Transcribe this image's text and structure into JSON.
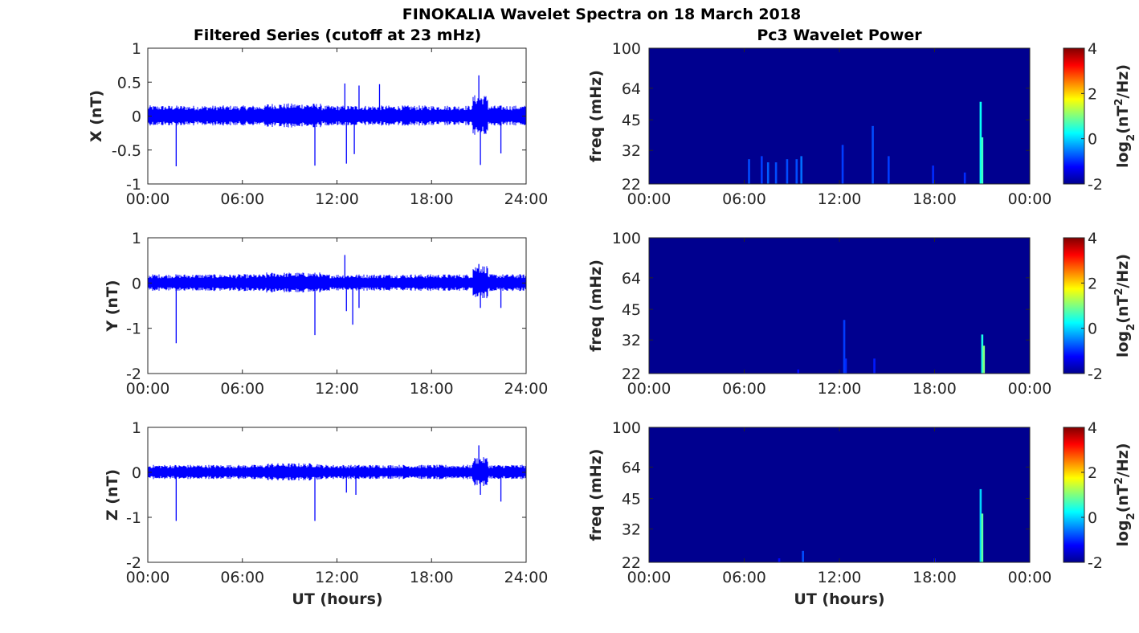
{
  "figure": {
    "title": "FINOKALIA Wavelet Spectra on 18 March 2018",
    "left_title": "Filtered Series (cutoff at 23 mHz)",
    "right_title": "Pc3 Wavelet Power",
    "xlabel": "UT (hours)",
    "colors": {
      "trace": "#0000ff",
      "background_power": "#00008f",
      "axes": "#262626"
    }
  },
  "chart_data": [
    {
      "type": "line",
      "panel": "X-series",
      "ylabel": "X (nT)",
      "ylim": [
        -1,
        1
      ],
      "yticks": [
        1,
        0.5,
        0,
        -0.5,
        -1
      ],
      "ytick_labels": [
        "1",
        "0.5",
        "0",
        "-0.5",
        "-1"
      ],
      "xlim": [
        0,
        24
      ],
      "xticks": [
        0,
        6,
        12,
        18,
        24
      ],
      "xtick_labels": [
        "00:00",
        "06:00",
        "12:00",
        "18:00",
        "24:00"
      ],
      "baseline_amplitude": 0.12,
      "spikes": [
        {
          "x": 1.8,
          "y": -0.74
        },
        {
          "x": 10.6,
          "y": -0.73
        },
        {
          "x": 12.5,
          "y": 0.48
        },
        {
          "x": 12.6,
          "y": -0.7
        },
        {
          "x": 13.1,
          "y": -0.56
        },
        {
          "x": 13.4,
          "y": 0.45
        },
        {
          "x": 14.7,
          "y": 0.47
        },
        {
          "x": 21.0,
          "y": 0.6
        },
        {
          "x": 21.1,
          "y": -0.72
        },
        {
          "x": 22.4,
          "y": -0.55
        }
      ]
    },
    {
      "type": "line",
      "panel": "Y-series",
      "ylabel": "Y (nT)",
      "ylim": [
        -2,
        1
      ],
      "yticks": [
        1,
        0,
        -1,
        -2
      ],
      "ytick_labels": [
        "1",
        "0",
        "-1",
        "-2"
      ],
      "xlim": [
        0,
        24
      ],
      "xticks": [
        0,
        6,
        12,
        18,
        24
      ],
      "xtick_labels": [
        "00:00",
        "06:00",
        "12:00",
        "18:00",
        "24:00"
      ],
      "baseline_amplitude": 0.15,
      "spikes": [
        {
          "x": 1.8,
          "y": -1.33
        },
        {
          "x": 10.6,
          "y": -1.15
        },
        {
          "x": 12.5,
          "y": 0.62
        },
        {
          "x": 12.6,
          "y": -0.62
        },
        {
          "x": 13.0,
          "y": -0.92
        },
        {
          "x": 13.4,
          "y": -0.55
        },
        {
          "x": 21.0,
          "y": 0.42
        },
        {
          "x": 21.1,
          "y": -0.55
        },
        {
          "x": 22.4,
          "y": -0.55
        }
      ]
    },
    {
      "type": "line",
      "panel": "Z-series",
      "ylabel": "Z (nT)",
      "ylim": [
        -2,
        1
      ],
      "yticks": [
        1,
        0,
        -1,
        -2
      ],
      "ytick_labels": [
        "1",
        "0",
        "-1",
        "-2"
      ],
      "xlim": [
        0,
        24
      ],
      "xticks": [
        0,
        6,
        12,
        18,
        24
      ],
      "xtick_labels": [
        "00:00",
        "06:00",
        "12:00",
        "18:00",
        "24:00"
      ],
      "baseline_amplitude": 0.13,
      "spikes": [
        {
          "x": 1.8,
          "y": -1.08
        },
        {
          "x": 10.6,
          "y": -1.08
        },
        {
          "x": 12.6,
          "y": -0.45
        },
        {
          "x": 13.2,
          "y": -0.5
        },
        {
          "x": 21.0,
          "y": 0.6
        },
        {
          "x": 21.1,
          "y": -0.5
        },
        {
          "x": 22.4,
          "y": -0.65
        }
      ]
    },
    {
      "type": "heatmap",
      "panel": "X-power",
      "ylabel": "freq (mHz)",
      "y_scale": "log",
      "ylim": [
        22,
        100
      ],
      "yticks": [
        22,
        32,
        45,
        64,
        100
      ],
      "ytick_labels": [
        "22",
        "32",
        "45",
        "64",
        "100"
      ],
      "xlim": [
        0,
        24
      ],
      "xticks": [
        0,
        6,
        12,
        18,
        24
      ],
      "xtick_labels": [
        "00:00",
        "06:00",
        "12:00",
        "18:00",
        "00:00"
      ],
      "colorbar": {
        "label": "log2(nT²/Hz)",
        "range": [
          -2,
          4
        ],
        "ticks": [
          4,
          2,
          0,
          -2
        ],
        "tick_labels": [
          "4",
          "2",
          "0",
          "-2"
        ]
      },
      "events": [
        {
          "t": 6.3,
          "f_top": 29,
          "level": -0.8
        },
        {
          "t": 7.1,
          "f_top": 30,
          "level": -0.9
        },
        {
          "t": 7.5,
          "f_top": 28,
          "level": -0.7
        },
        {
          "t": 8.0,
          "f_top": 28,
          "level": -0.8
        },
        {
          "t": 8.7,
          "f_top": 29,
          "level": -0.8
        },
        {
          "t": 9.3,
          "f_top": 29,
          "level": -0.8
        },
        {
          "t": 9.6,
          "f_top": 30,
          "level": -0.6
        },
        {
          "t": 12.2,
          "f_top": 34,
          "level": -0.9
        },
        {
          "t": 14.1,
          "f_top": 42,
          "level": -0.8
        },
        {
          "t": 15.1,
          "f_top": 30,
          "level": -0.9
        },
        {
          "t": 17.9,
          "f_top": 27,
          "level": -1.0
        },
        {
          "t": 19.9,
          "f_top": 25,
          "level": -1.0
        },
        {
          "t": 20.9,
          "f_top": 55,
          "level": 0.3
        },
        {
          "t": 21.0,
          "f_top": 37,
          "level": 0.6
        }
      ]
    },
    {
      "type": "heatmap",
      "panel": "Y-power",
      "ylabel": "freq (mHz)",
      "y_scale": "log",
      "ylim": [
        22,
        100
      ],
      "yticks": [
        22,
        32,
        45,
        64,
        100
      ],
      "ytick_labels": [
        "22",
        "32",
        "45",
        "64",
        "100"
      ],
      "xlim": [
        0,
        24
      ],
      "xticks": [
        0,
        6,
        12,
        18,
        24
      ],
      "xtick_labels": [
        "00:00",
        "06:00",
        "12:00",
        "18:00",
        "00:00"
      ],
      "colorbar": {
        "label": "log2(nT²/Hz)",
        "range": [
          -2,
          4
        ],
        "ticks": [
          4,
          2,
          0,
          -2
        ],
        "tick_labels": [
          "4",
          "2",
          "0",
          "-2"
        ]
      },
      "events": [
        {
          "t": 9.4,
          "f_top": 23,
          "level": -1.2
        },
        {
          "t": 12.3,
          "f_top": 40,
          "level": -0.9
        },
        {
          "t": 12.4,
          "f_top": 26,
          "level": -1.0
        },
        {
          "t": 14.2,
          "f_top": 26,
          "level": -1.1
        },
        {
          "t": 21.0,
          "f_top": 34,
          "level": 0.4
        },
        {
          "t": 21.1,
          "f_top": 30,
          "level": 1.0
        }
      ]
    },
    {
      "type": "heatmap",
      "panel": "Z-power",
      "ylabel": "freq (mHz)",
      "y_scale": "log",
      "ylim": [
        22,
        100
      ],
      "yticks": [
        22,
        32,
        45,
        64,
        100
      ],
      "ytick_labels": [
        "22",
        "32",
        "45",
        "64",
        "100"
      ],
      "xlim": [
        0,
        24
      ],
      "xticks": [
        0,
        6,
        12,
        18,
        24
      ],
      "xtick_labels": [
        "00:00",
        "06:00",
        "12:00",
        "18:00",
        "00:00"
      ],
      "colorbar": {
        "label": "log2(nT²/Hz)",
        "range": [
          -2,
          4
        ],
        "ticks": [
          4,
          2,
          0,
          -2
        ],
        "tick_labels": [
          "4",
          "2",
          "0",
          "-2"
        ]
      },
      "events": [
        {
          "t": 8.2,
          "f_top": 23,
          "level": -1.2
        },
        {
          "t": 9.7,
          "f_top": 25,
          "level": -0.8
        },
        {
          "t": 18.0,
          "f_top": 23,
          "level": -1.2
        },
        {
          "t": 20.9,
          "f_top": 50,
          "level": 0.0
        },
        {
          "t": 21.0,
          "f_top": 38,
          "level": 0.8
        }
      ]
    }
  ]
}
